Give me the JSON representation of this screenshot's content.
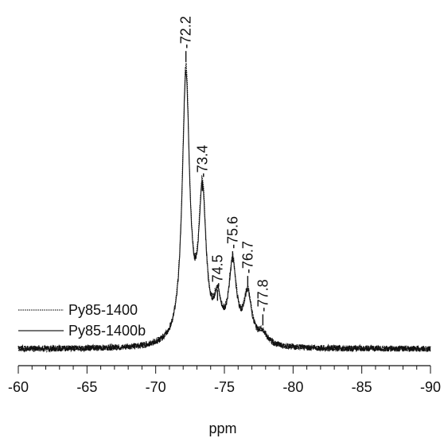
{
  "chart_data": {
    "type": "line",
    "xlabel": "ppm",
    "ylabel": "",
    "title": "",
    "xlim": [
      -60,
      -90
    ],
    "x_major_ticks": [
      -60,
      -65,
      -70,
      -75,
      -80,
      -85,
      -90
    ],
    "x_tick_labels": [
      "-60",
      "-65",
      "-70",
      "-75",
      "-80",
      "-85",
      "-90"
    ],
    "ylim": [
      0,
      100
    ],
    "peak_labels": [
      {
        "x": -72.2,
        "y": 104,
        "text": "-72.2"
      },
      {
        "x": -73.4,
        "y": 57,
        "text": "-73.4"
      },
      {
        "x": -74.5,
        "y": 17,
        "text": "-74.5"
      },
      {
        "x": -75.6,
        "y": 31,
        "text": "-75.6"
      },
      {
        "x": -76.7,
        "y": 22,
        "text": "-76.7"
      },
      {
        "x": -77.8,
        "y": 8,
        "text": "-77.8"
      }
    ],
    "peaks": [
      {
        "center": -72.2,
        "height": 100,
        "width": 0.32
      },
      {
        "center": -73.4,
        "height": 54,
        "width": 0.32
      },
      {
        "center": -74.5,
        "height": 14,
        "width": 0.32
      },
      {
        "center": -75.6,
        "height": 29,
        "width": 0.34
      },
      {
        "center": -76.7,
        "height": 18,
        "width": 0.36
      },
      {
        "center": -77.8,
        "height": 4,
        "width": 0.4
      }
    ],
    "series": [
      {
        "name": "Py85-1400",
        "style": "dotted",
        "scale": 1.0,
        "noise_seed": 7
      },
      {
        "name": "Py85-1400b",
        "style": "solid",
        "scale": 0.97,
        "noise_seed": 19
      }
    ]
  }
}
